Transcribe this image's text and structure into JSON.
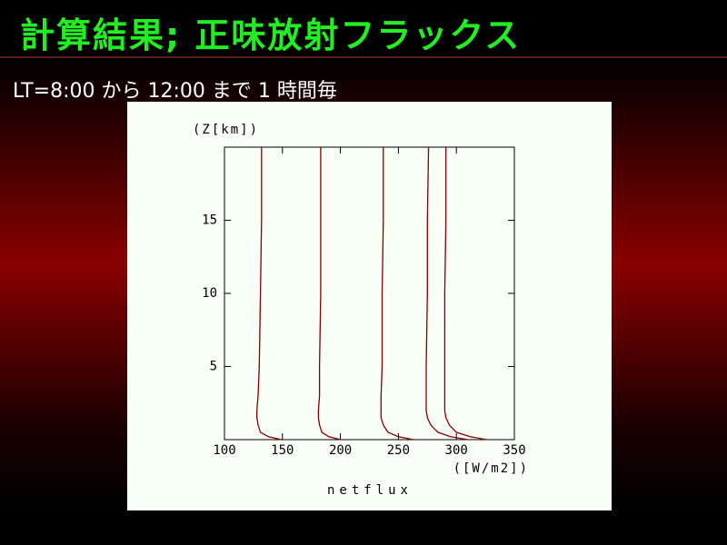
{
  "slide": {
    "title": "計算結果; 正味放射フラックス",
    "subtitle": "LT=8:00 から 12:00 まで 1 時間毎"
  },
  "chart_data": {
    "type": "line",
    "xlabel": "([W/m2])",
    "ylabel": "(Z[km])",
    "footer": "netflux",
    "xlim": [
      100,
      350
    ],
    "xticks": [
      100,
      150,
      200,
      250,
      300,
      350
    ],
    "ylim": [
      0,
      20
    ],
    "yticks": [
      5,
      10,
      15
    ],
    "y": [
      0,
      0.2,
      0.5,
      1,
      1.5,
      2,
      3,
      5,
      10,
      15,
      20
    ],
    "series": [
      {
        "color": "#800000",
        "x": [
          149,
          138,
          131,
          129,
          128,
          128,
          129,
          130,
          131,
          132,
          132
        ]
      },
      {
        "color": "#800000",
        "x": [
          200,
          190,
          184,
          182,
          181,
          181,
          182,
          182,
          183,
          183,
          183
        ]
      },
      {
        "color": "#800000",
        "x": [
          263,
          250,
          241,
          237,
          235,
          235,
          235,
          236,
          236,
          237,
          237
        ]
      },
      {
        "color": "#800000",
        "x": [
          310,
          295,
          284,
          278,
          275,
          274,
          274,
          274,
          275,
          275,
          276
        ]
      },
      {
        "color": "#800000",
        "x": [
          326,
          312,
          300,
          294,
          291,
          290,
          290,
          290,
          290,
          291,
          291
        ]
      }
    ]
  }
}
